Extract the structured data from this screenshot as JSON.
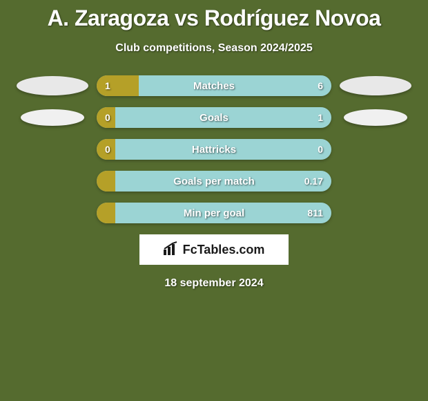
{
  "title": "A. Zaragoza vs Rodríguez Novoa",
  "subtitle": "Club competitions, Season 2024/2025",
  "date": "18 september 2024",
  "brand": "FcTables.com",
  "bar_colors": {
    "left_fill": "#b5a028",
    "right_fill": "#9bd4d4",
    "background": "#556b2f"
  },
  "stats": [
    {
      "metric": "Matches",
      "left_value": "1",
      "right_value": "6",
      "left_pct": 18,
      "has_left_ellipse": true,
      "has_right_ellipse": true,
      "ellipse_variant": 1
    },
    {
      "metric": "Goals",
      "left_value": "0",
      "right_value": "1",
      "left_pct": 8,
      "has_left_ellipse": true,
      "has_right_ellipse": true,
      "ellipse_variant": 2
    },
    {
      "metric": "Hattricks",
      "left_value": "0",
      "right_value": "0",
      "left_pct": 8,
      "has_left_ellipse": false,
      "has_right_ellipse": false
    },
    {
      "metric": "Goals per match",
      "left_value": "",
      "right_value": "0.17",
      "left_pct": 8,
      "has_left_ellipse": false,
      "has_right_ellipse": false
    },
    {
      "metric": "Min per goal",
      "left_value": "",
      "right_value": "811",
      "left_pct": 8,
      "has_left_ellipse": false,
      "has_right_ellipse": false
    }
  ]
}
